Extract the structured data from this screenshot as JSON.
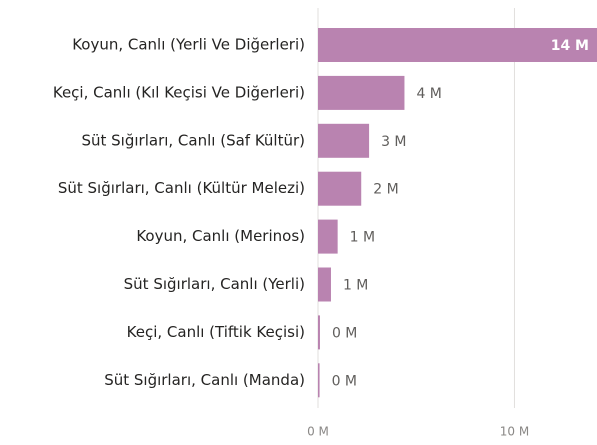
{
  "chart_data": {
    "type": "bar",
    "orientation": "horizontal",
    "categories": [
      "Koyun, Canlı (Yerli Ve Diğerleri)",
      "Keçi, Canlı (Kıl Keçisi Ve Diğerleri)",
      "Süt Sığırları, Canlı (Saf Kültür)",
      "Süt Sığırları, Canlı (Kültür Melezi)",
      "Koyun, Canlı (Merinos)",
      "Süt Sığırları, Canlı (Yerli)",
      "Keçi, Canlı (Tiftik Keçisi)",
      "Süt Sığırları, Canlı (Manda)"
    ],
    "values": [
      14200000,
      4400000,
      2600000,
      2200000,
      1000000,
      660000,
      100000,
      80000
    ],
    "value_labels": [
      "14 M",
      "4 M",
      "3 M",
      "2 M",
      "1 M",
      "1 M",
      "0 M",
      "0 M"
    ],
    "color": "#b983b0",
    "xlim": [
      0,
      14200000
    ],
    "xticks": [
      {
        "value": 0,
        "label": "0 M"
      },
      {
        "value": 10000000,
        "label": "10 M"
      }
    ],
    "grid": true
  }
}
